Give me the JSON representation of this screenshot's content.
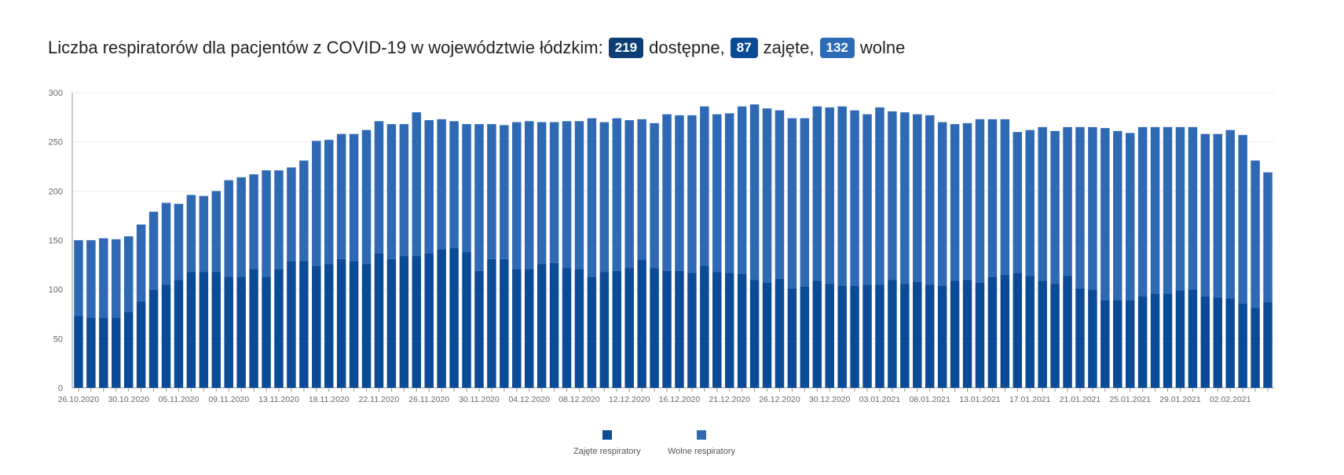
{
  "header": {
    "text_before": "Liczba respiratorów dla pacjentów z COVID-19 w województwie łódzkim:",
    "available_value": "219",
    "available_label": "dostępne,",
    "occupied_value": "87",
    "occupied_label": "zajęte,",
    "free_value": "132",
    "free_label": "wolne"
  },
  "colors": {
    "available_badge": "#0d3e73",
    "occupied": "#0b4a97",
    "free": "#2f69b3",
    "free_badge": "#2d6bb7",
    "axis": "#999999",
    "grid": "#ececec"
  },
  "legend": {
    "occupied_label": "Zajęte respiratory",
    "free_label": "Wolne respiratory"
  },
  "chart_data": {
    "type": "bar",
    "stacked": true,
    "legend_position": "bottom-center",
    "grid": true,
    "ylim": [
      0,
      300
    ],
    "yticks": [
      0,
      50,
      100,
      150,
      200,
      250,
      300
    ],
    "x_tick_labels": [
      "26.10.2020",
      "30.10.2020",
      "05.11.2020",
      "09.11.2020",
      "13.11.2020",
      "18.11.2020",
      "22.11.2020",
      "26.11.2020",
      "30.11.2020",
      "04.12.2020",
      "08.12.2020",
      "12.12.2020",
      "16.12.2020",
      "21.12.2020",
      "26.12.2020",
      "30.12.2020",
      "03.01.2021",
      "08.01.2021",
      "13.01.2021",
      "17.01.2021",
      "21.01.2021",
      "25.01.2021",
      "29.01.2021",
      "02.02.2021"
    ],
    "x_tick_every": 4,
    "series": [
      {
        "name": "Zajęte respiratory",
        "values": [
          73,
          71,
          71,
          71,
          77,
          88,
          100,
          105,
          110,
          118,
          118,
          118,
          113,
          113,
          121,
          113,
          121,
          129,
          129,
          124,
          126,
          131,
          129,
          126,
          137,
          131,
          134,
          134,
          137,
          141,
          142,
          138,
          119,
          131,
          131,
          121,
          121,
          126,
          127,
          122,
          121,
          113,
          118,
          119,
          122,
          130,
          122,
          119,
          119,
          117,
          124,
          118,
          117,
          116,
          110,
          107,
          111,
          101,
          103,
          109,
          106,
          104,
          104,
          105,
          105,
          110,
          106,
          108,
          105,
          104,
          109,
          110,
          107,
          113,
          115,
          117,
          114,
          109,
          106,
          114,
          101,
          100,
          89,
          89,
          89,
          93,
          96,
          96,
          99,
          100,
          93,
          92,
          91,
          86,
          81,
          87
        ]
      },
      {
        "name": "Wolne respiratory",
        "values": [
          77,
          79,
          81,
          80,
          77,
          78,
          79,
          83,
          77,
          78,
          77,
          82,
          98,
          101,
          96,
          108,
          100,
          95,
          102,
          127,
          126,
          127,
          129,
          136,
          134,
          137,
          134,
          146,
          135,
          132,
          129,
          130,
          149,
          137,
          136,
          149,
          150,
          144,
          143,
          149,
          150,
          161,
          152,
          155,
          150,
          143,
          147,
          159,
          158,
          160,
          162,
          160,
          162,
          170,
          178,
          177,
          171,
          173,
          171,
          177,
          179,
          182,
          178,
          173,
          180,
          171,
          174,
          170,
          172,
          166,
          159,
          159,
          166,
          160,
          158,
          143,
          148,
          156,
          155,
          151,
          164,
          165,
          175,
          172,
          170,
          172,
          169,
          169,
          166,
          165,
          165,
          166,
          171,
          171,
          150,
          132
        ]
      }
    ]
  }
}
